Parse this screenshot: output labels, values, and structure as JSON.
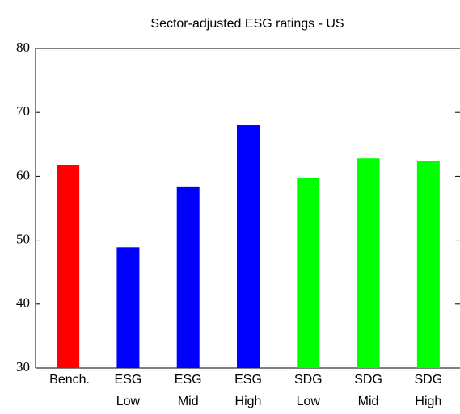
{
  "chart_data": {
    "type": "bar",
    "title": "Sector-adjusted ESG ratings - US",
    "categories": [
      "Bench.",
      "ESG Low",
      "ESG Mid",
      "ESG High",
      "SDG Low",
      "SDG Mid",
      "SDG High"
    ],
    "values": [
      61.8,
      48.9,
      58.3,
      68.0,
      59.8,
      62.8,
      62.4
    ],
    "colors": [
      "#ff0000",
      "#0000ff",
      "#0000ff",
      "#0000ff",
      "#00ff00",
      "#00ff00",
      "#00ff00"
    ],
    "ylim": [
      30,
      80
    ],
    "yticks": [
      30,
      40,
      50,
      60,
      70,
      80
    ],
    "grid": false
  }
}
